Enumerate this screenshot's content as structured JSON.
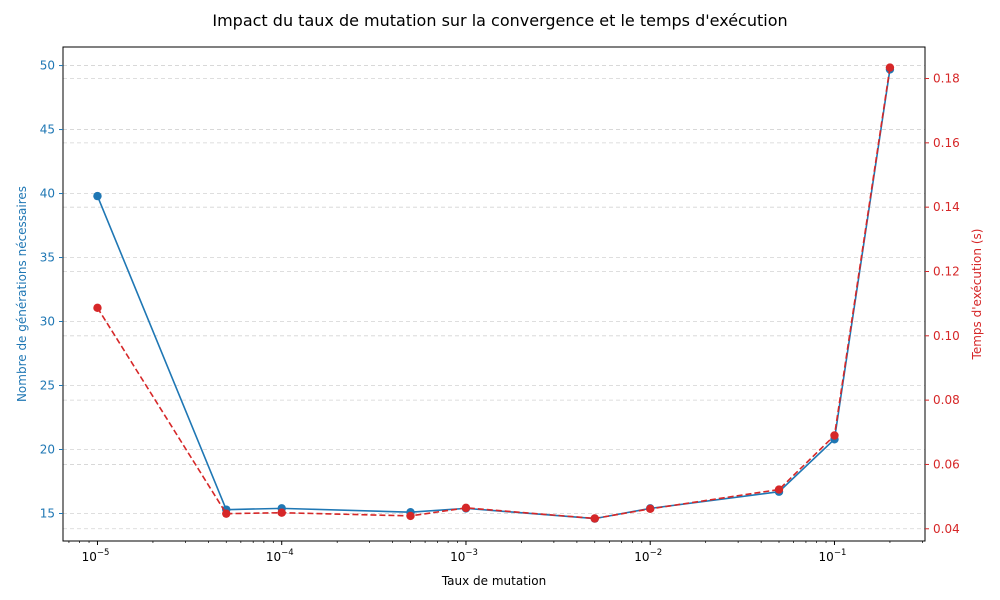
{
  "chart_data": {
    "type": "line",
    "title": "Impact du taux de mutation sur la convergence et le temps d'exécution",
    "xlabel": "Taux de mutation",
    "xscale": "log",
    "xlim": [
      6.5e-06,
      0.31
    ],
    "x": [
      1e-05,
      5e-05,
      0.0001,
      0.0005,
      0.001,
      0.005,
      0.01,
      0.05,
      0.1,
      0.2
    ],
    "x_ticks": [
      {
        "value": 1e-05,
        "base": "10",
        "exp": "−5"
      },
      {
        "value": 0.0001,
        "base": "10",
        "exp": "−4"
      },
      {
        "value": 0.001,
        "base": "10",
        "exp": "−3"
      },
      {
        "value": 0.01,
        "base": "10",
        "exp": "−2"
      },
      {
        "value": 0.1,
        "base": "10",
        "exp": "−1"
      }
    ],
    "grid": "y dashed",
    "y_left": {
      "label": "Nombre de générations nécessaires",
      "color": "#1f77b4",
      "ylim": [
        12.85,
        51.45
      ],
      "ticks": [
        15,
        20,
        25,
        30,
        35,
        40,
        45,
        50
      ]
    },
    "y_right": {
      "label": "Temps d'exécution (s)",
      "color": "#d62728",
      "ylim": [
        0.0362,
        0.1898
      ],
      "ticks": [
        "0.04",
        "0.06",
        "0.08",
        "0.10",
        "0.12",
        "0.14",
        "0.16",
        "0.18"
      ]
    },
    "series": [
      {
        "axis": "left",
        "color": "#1f77b4",
        "style": "solid",
        "marker": "circle",
        "values": [
          39.8,
          15.3,
          15.4,
          15.1,
          15.4,
          14.6,
          15.4,
          16.7,
          20.8,
          49.7
        ]
      },
      {
        "axis": "right",
        "color": "#d62728",
        "style": "dashed",
        "marker": "circle",
        "values": [
          0.1087,
          0.0447,
          0.045,
          0.044,
          0.0465,
          0.0432,
          0.0462,
          0.0522,
          0.069,
          0.1834
        ]
      }
    ]
  }
}
